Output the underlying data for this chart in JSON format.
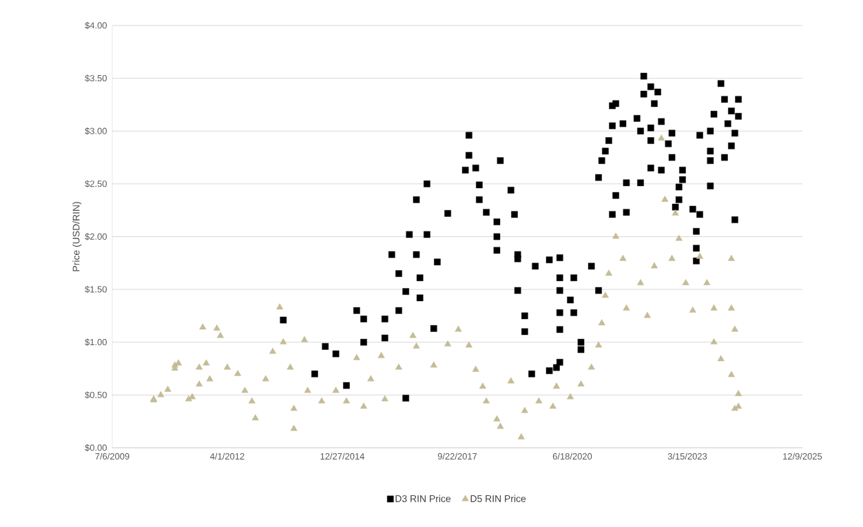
{
  "chart_data": {
    "type": "scatter",
    "ylabel": "Price (USD/RIN)",
    "xlim": [
      "2009-07-06",
      "2025-12-09"
    ],
    "xticks": [
      {
        "value": "2009-07-06",
        "label": "7/6/2009"
      },
      {
        "value": "2012-04-01",
        "label": "4/1/2012"
      },
      {
        "value": "2014-12-27",
        "label": "12/27/2014"
      },
      {
        "value": "2017-09-22",
        "label": "9/22/2017"
      },
      {
        "value": "2020-06-18",
        "label": "6/18/2020"
      },
      {
        "value": "2023-03-15",
        "label": "3/15/2023"
      },
      {
        "value": "2025-12-09",
        "label": "12/9/2025"
      }
    ],
    "ylim": [
      0,
      4
    ],
    "yticks": [
      {
        "value": 0,
        "label": "$0.00"
      },
      {
        "value": 0.5,
        "label": "$0.50"
      },
      {
        "value": 1,
        "label": "$1.00"
      },
      {
        "value": 1.5,
        "label": "$1.50"
      },
      {
        "value": 2,
        "label": "$2.00"
      },
      {
        "value": 2.5,
        "label": "$2.50"
      },
      {
        "value": 3,
        "label": "$3.00"
      },
      {
        "value": 3.5,
        "label": "$3.50"
      },
      {
        "value": 4,
        "label": "$4.00"
      }
    ],
    "grid": "y",
    "legend": "bottom",
    "series": [
      {
        "name": "D3 RIN Price",
        "color": "#000000",
        "marker": "square",
        "x": [
          "2013-08",
          "2014-05",
          "2014-08",
          "2014-11",
          "2015-02",
          "2015-05",
          "2015-07",
          "2015-07",
          "2016-01",
          "2016-01",
          "2016-03",
          "2016-05",
          "2016-05",
          "2016-07",
          "2016-07",
          "2016-08",
          "2016-10",
          "2016-10",
          "2016-11",
          "2016-11",
          "2017-01",
          "2017-01",
          "2017-03",
          "2017-04",
          "2017-07",
          "2018-01",
          "2018-01",
          "2017-12",
          "2018-03",
          "2018-04",
          "2018-04",
          "2018-06",
          "2018-09",
          "2018-09",
          "2018-09",
          "2018-10",
          "2019-01",
          "2019-02",
          "2019-03",
          "2019-03",
          "2019-03",
          "2019-05",
          "2019-05",
          "2019-07",
          "2019-08",
          "2019-12",
          "2019-12",
          "2020-02",
          "2020-03",
          "2020-03",
          "2020-03",
          "2020-03",
          "2020-03",
          "2020-03",
          "2020-06",
          "2020-07",
          "2020-07",
          "2020-09",
          "2020-09",
          "2020-12",
          "2021-02",
          "2021-02",
          "2021-03",
          "2021-04",
          "2021-05",
          "2021-06",
          "2021-06",
          "2021-06",
          "2021-07",
          "2021-07",
          "2021-09",
          "2021-10",
          "2021-10",
          "2022-01",
          "2022-02",
          "2022-02",
          "2022-03",
          "2022-03",
          "2022-05",
          "2022-05",
          "2022-05",
          "2022-05",
          "2022-06",
          "2022-07",
          "2022-08",
          "2022-08",
          "2022-10",
          "2022-11",
          "2022-11",
          "2022-12",
          "2023-01",
          "2023-01",
          "2023-02",
          "2023-02",
          "2023-05",
          "2023-06",
          "2023-06",
          "2023-06",
          "2023-07",
          "2023-07",
          "2023-10",
          "2023-10",
          "2023-10",
          "2023-10",
          "2023-11",
          "2024-01",
          "2024-02",
          "2024-02",
          "2024-03",
          "2024-04",
          "2024-04",
          "2024-05",
          "2024-05",
          "2024-06",
          "2024-06"
        ],
        "values": [
          1.21,
          0.7,
          0.96,
          0.89,
          0.59,
          1.3,
          1.22,
          1.0,
          1.22,
          1.04,
          1.83,
          1.3,
          1.65,
          1.48,
          0.47,
          2.02,
          1.83,
          2.35,
          1.42,
          1.61,
          2.5,
          2.02,
          1.13,
          1.76,
          2.22,
          2.96,
          2.77,
          2.63,
          2.65,
          2.49,
          2.35,
          2.23,
          2.14,
          2.0,
          1.87,
          2.72,
          2.44,
          2.21,
          1.83,
          1.79,
          1.49,
          1.25,
          1.1,
          0.7,
          1.72,
          1.78,
          0.73,
          0.76,
          1.8,
          0.81,
          1.61,
          1.49,
          1.28,
          1.12,
          1.4,
          1.61,
          1.28,
          1.0,
          0.93,
          1.72,
          1.49,
          2.56,
          2.72,
          2.81,
          2.91,
          3.24,
          3.05,
          2.21,
          3.26,
          2.39,
          3.07,
          2.51,
          2.23,
          3.12,
          2.51,
          3.0,
          3.52,
          3.35,
          3.42,
          2.91,
          3.03,
          2.65,
          3.26,
          3.37,
          3.09,
          2.63,
          2.88,
          2.98,
          2.75,
          2.28,
          2.35,
          2.47,
          2.63,
          2.54,
          2.26,
          2.05,
          1.89,
          1.77,
          2.21,
          2.96,
          3.0,
          2.81,
          2.72,
          2.48,
          3.16,
          3.45,
          3.3,
          2.75,
          3.07,
          2.86,
          3.19,
          2.98,
          2.16,
          3.3,
          3.14
        ]
      },
      {
        "name": "D5 RIN Price",
        "color": "#c4bc96",
        "marker": "triangle",
        "x": [
          "2010-07",
          "2010-07",
          "2010-09",
          "2010-11",
          "2011-01",
          "2011-01",
          "2011-02",
          "2011-05",
          "2011-06",
          "2011-08",
          "2011-08",
          "2011-09",
          "2011-10",
          "2011-11",
          "2012-01",
          "2012-02",
          "2012-04",
          "2012-07",
          "2012-09",
          "2012-11",
          "2012-12",
          "2013-03",
          "2013-05",
          "2013-07",
          "2013-08",
          "2013-10",
          "2013-11",
          "2013-11",
          "2014-02",
          "2014-03",
          "2014-07",
          "2014-11",
          "2015-02",
          "2015-05",
          "2015-07",
          "2015-09",
          "2015-12",
          "2016-01",
          "2016-05",
          "2016-09",
          "2016-10",
          "2017-03",
          "2017-07",
          "2017-10",
          "2018-01",
          "2018-03",
          "2018-05",
          "2018-06",
          "2018-09",
          "2018-10",
          "2019-01",
          "2019-04",
          "2019-05",
          "2019-09",
          "2020-01",
          "2020-02",
          "2020-06",
          "2020-09",
          "2020-12",
          "2021-02",
          "2021-03",
          "2021-04",
          "2021-05",
          "2021-07",
          "2021-09",
          "2021-10",
          "2022-02",
          "2022-04",
          "2022-06",
          "2022-08",
          "2022-09",
          "2022-11",
          "2022-12",
          "2023-01",
          "2023-03",
          "2023-05",
          "2023-07",
          "2023-09",
          "2023-11",
          "2023-11",
          "2024-01",
          "2024-04",
          "2024-04",
          "2024-04",
          "2024-05",
          "2024-05",
          "2024-06",
          "2024-06"
        ],
        "values": [
          0.45,
          0.46,
          0.5,
          0.55,
          0.75,
          0.78,
          0.8,
          0.46,
          0.48,
          0.76,
          0.6,
          1.14,
          0.8,
          0.65,
          1.13,
          1.06,
          0.76,
          0.7,
          0.54,
          0.44,
          0.28,
          0.65,
          0.91,
          1.33,
          1.0,
          0.76,
          0.37,
          0.18,
          1.02,
          0.54,
          0.44,
          0.54,
          0.44,
          0.85,
          0.39,
          0.65,
          0.87,
          0.46,
          0.76,
          1.06,
          0.96,
          0.78,
          0.98,
          1.12,
          0.97,
          0.74,
          0.58,
          0.44,
          0.27,
          0.2,
          0.63,
          0.1,
          0.35,
          0.44,
          0.39,
          0.58,
          0.48,
          0.6,
          0.76,
          0.97,
          1.18,
          1.44,
          1.65,
          2.0,
          1.79,
          1.32,
          1.56,
          1.25,
          1.72,
          2.93,
          2.35,
          1.79,
          2.22,
          1.98,
          1.56,
          1.3,
          1.81,
          1.56,
          1.32,
          1.0,
          0.84,
          1.79,
          1.32,
          0.69,
          1.12,
          0.37,
          0.51,
          0.39
        ]
      }
    ]
  }
}
